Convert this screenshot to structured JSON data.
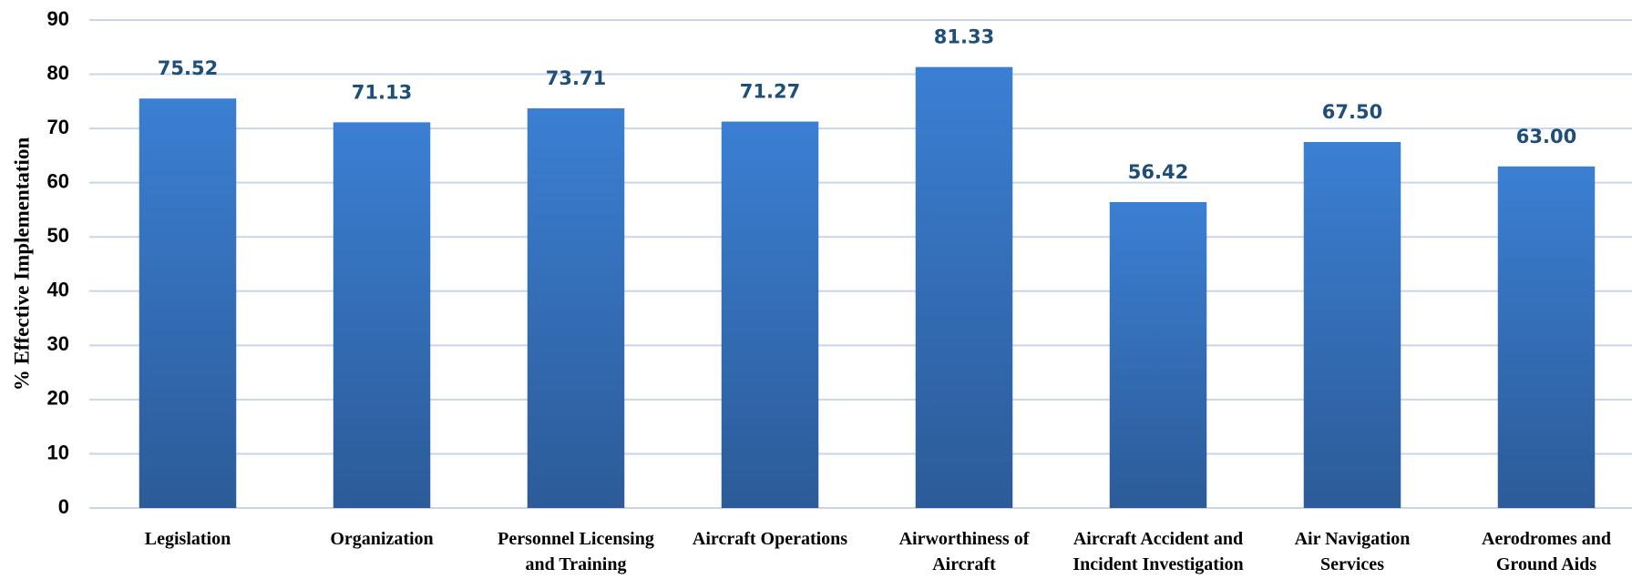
{
  "chart_data": {
    "type": "bar",
    "y_label": "% Effective Implementation",
    "categories": [
      "Legislation",
      "Organization",
      "Personnel Licensing and Training",
      "Aircraft Operations",
      "Airworthiness of Aircraft",
      "Aircraft Accident and Incident Investigation",
      "Air Navigation Services",
      "Aerodromes and Ground Aids"
    ],
    "values": [
      75.52,
      71.13,
      73.71,
      71.27,
      81.33,
      56.42,
      67.5,
      63
    ],
    "value_labels": [
      "75.52",
      "71.13",
      "73.71",
      "71.27",
      "81.33",
      "56.42",
      "67.50",
      "63.00"
    ],
    "color": "#3a78c9",
    "ylim": [
      0,
      90
    ],
    "yticks": [
      0,
      10,
      20,
      30,
      40,
      50,
      60,
      70,
      80,
      90
    ],
    "grid": true
  }
}
